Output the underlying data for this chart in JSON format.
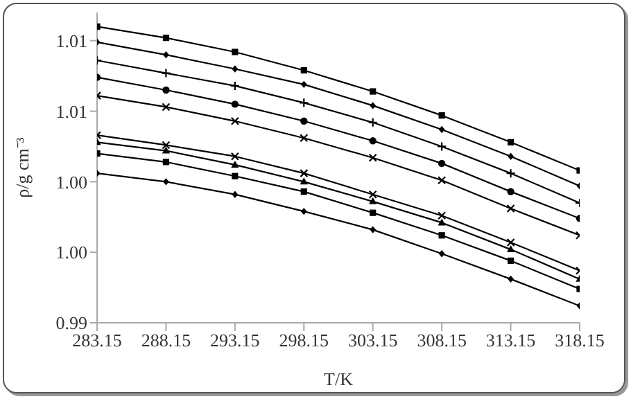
{
  "chart_data": {
    "type": "line",
    "xlabel": "T/K",
    "ylabel": "ρ/g cm⁻³",
    "x": [
      283.15,
      288.15,
      293.15,
      298.15,
      303.15,
      308.15,
      313.15,
      318.15
    ],
    "xlim": [
      283.15,
      318.15
    ],
    "xticks": [
      283.15,
      288.15,
      293.15,
      298.15,
      303.15,
      308.15,
      313.15,
      318.15
    ],
    "ylim": [
      0.99,
      1.012
    ],
    "yticks": [
      {
        "value": 0.99,
        "label": "0.99"
      },
      {
        "value": 0.995,
        "label": "1.00"
      },
      {
        "value": 1.0,
        "label": "1.00"
      },
      {
        "value": 1.005,
        "label": "1.01"
      },
      {
        "value": 1.01,
        "label": "1.01"
      }
    ],
    "grid": false,
    "legend": false,
    "line_style": "solid",
    "series": [
      {
        "color": "#000000",
        "marker": "square",
        "values": [
          1.011,
          1.0102,
          1.0092,
          1.0079,
          1.0064,
          1.0047,
          1.0028,
          1.0008
        ]
      },
      {
        "color": "#000000",
        "marker": "diamond",
        "values": [
          1.0099,
          1.009,
          1.008,
          1.0069,
          1.0054,
          1.0037,
          1.0018,
          0.9997
        ]
      },
      {
        "color": "#000000",
        "marker": "plus",
        "values": [
          1.0086,
          1.0077,
          1.0068,
          1.0056,
          1.0042,
          1.0025,
          1.0006,
          0.9985
        ]
      },
      {
        "color": "#000000",
        "marker": "circle",
        "values": [
          1.0074,
          1.0065,
          1.0055,
          1.0043,
          1.0029,
          1.0013,
          0.9993,
          0.9974
        ]
      },
      {
        "color": "#000000",
        "marker": "cross",
        "values": [
          1.0061,
          1.0053,
          1.0043,
          1.0031,
          1.0017,
          1.0001,
          0.9981,
          0.9962
        ]
      },
      {
        "color": "#000000",
        "marker": "cross",
        "values": [
          1.0033,
          1.0026,
          1.0018,
          1.0006,
          0.9991,
          0.9976,
          0.9957,
          0.9937
        ]
      },
      {
        "color": "#000000",
        "marker": "triangle",
        "values": [
          1.0028,
          1.0022,
          1.0012,
          1.0,
          0.9986,
          0.9971,
          0.9952,
          0.9931
        ]
      },
      {
        "color": "#000000",
        "marker": "square",
        "values": [
          1.002,
          1.0014,
          1.0004,
          0.9993,
          0.9978,
          0.9962,
          0.9944,
          0.9924
        ]
      },
      {
        "color": "#000000",
        "marker": "diamond",
        "values": [
          1.0006,
          1.0,
          0.9991,
          0.9979,
          0.9966,
          0.9949,
          0.9931,
          0.9912
        ]
      }
    ]
  }
}
